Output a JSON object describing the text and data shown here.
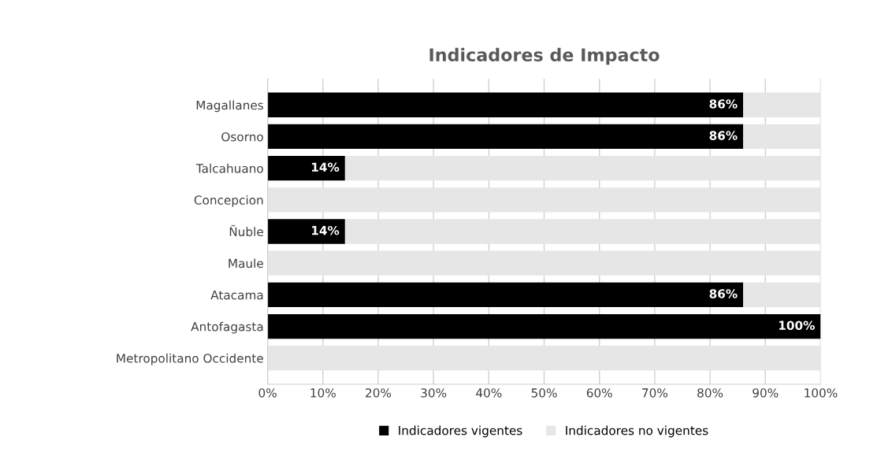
{
  "chart_data": {
    "type": "bar",
    "orientation": "horizontal",
    "stacked": true,
    "title": "Indicadores de Impacto",
    "categories": [
      "Magallanes",
      "Osorno",
      "Talcahuano",
      "Concepcion",
      "Ñuble",
      "Maule",
      "Atacama",
      "Antofagasta",
      "Metropolitano Occidente"
    ],
    "series": [
      {
        "name": "Indicadores vigentes",
        "color": "#000000",
        "values": [
          86,
          86,
          14,
          0,
          14,
          0,
          86,
          100,
          0
        ],
        "value_labels": [
          "86%",
          "86%",
          "14%",
          null,
          "14%",
          null,
          "86%",
          "100%",
          null
        ]
      },
      {
        "name": "Indicadores no vigentes",
        "color": "#e6e6e6",
        "values": [
          14,
          14,
          86,
          100,
          86,
          100,
          14,
          0,
          100
        ]
      }
    ],
    "xlim": [
      0,
      100
    ],
    "xticks": [
      {
        "value": 0,
        "label": "0%"
      },
      {
        "value": 10,
        "label": "10%"
      },
      {
        "value": 20,
        "label": "20%"
      },
      {
        "value": 30,
        "label": "30%"
      },
      {
        "value": 40,
        "label": "40%"
      },
      {
        "value": 50,
        "label": "50%"
      },
      {
        "value": 60,
        "label": "60%"
      },
      {
        "value": 70,
        "label": "70%"
      },
      {
        "value": 80,
        "label": "80%"
      },
      {
        "value": 90,
        "label": "90%"
      },
      {
        "value": 100,
        "label": "100%"
      }
    ],
    "grid": "x",
    "legend": "bottom"
  }
}
